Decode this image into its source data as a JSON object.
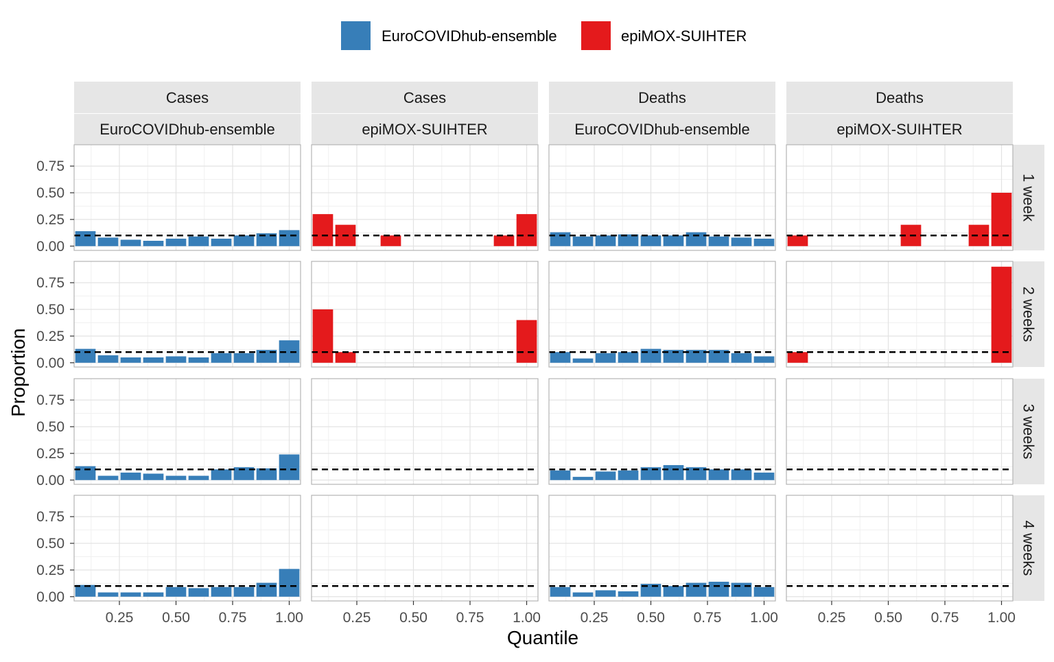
{
  "chart_data": {
    "type": "bar",
    "xlabel": "Quantile",
    "ylabel": "Proportion",
    "xlim": [
      0.05,
      1.05
    ],
    "ylim": [
      -0.04,
      0.95
    ],
    "x_ticks": [
      0.25,
      0.5,
      0.75,
      1.0
    ],
    "x_tick_labels": [
      "0.25",
      "0.50",
      "0.75",
      "1.00"
    ],
    "y_ticks": [
      0,
      0.25,
      0.5,
      0.75
    ],
    "y_tick_labels": [
      "0.00",
      "0.25",
      "0.50",
      "0.75"
    ],
    "reference_line": {
      "y": 0.1,
      "style": "dashed"
    },
    "grid": true,
    "legend_position": "top",
    "legend": [
      {
        "name": "EuroCOVIDhub-ensemble",
        "color": "#377EB8"
      },
      {
        "name": "epiMOX-SUIHTER",
        "color": "#E41A1C"
      }
    ],
    "x": [
      0.1,
      0.2,
      0.3,
      0.4,
      0.5,
      0.6,
      0.7,
      0.8,
      0.9,
      1.0
    ],
    "columns": [
      {
        "target": "Cases",
        "model": "EuroCOVIDhub-ensemble",
        "color": "#377EB8"
      },
      {
        "target": "Cases",
        "model": "epiMOX-SUIHTER",
        "color": "#E41A1C"
      },
      {
        "target": "Deaths",
        "model": "EuroCOVIDhub-ensemble",
        "color": "#377EB8"
      },
      {
        "target": "Deaths",
        "model": "epiMOX-SUIHTER",
        "color": "#E41A1C"
      }
    ],
    "rows": [
      "1 week",
      "2 weeks",
      "3 weeks",
      "4 weeks"
    ],
    "panels": [
      [
        [
          0.14,
          0.08,
          0.06,
          0.05,
          0.07,
          0.09,
          0.07,
          0.1,
          0.12,
          0.15
        ],
        [
          0.3,
          0.2,
          0,
          0.1,
          0,
          0,
          0,
          0,
          0.1,
          0.3
        ],
        [
          0.13,
          0.09,
          0.1,
          0.11,
          0.1,
          0.1,
          0.13,
          0.09,
          0.08,
          0.07
        ],
        [
          0.1,
          0,
          0,
          0,
          0,
          0.2,
          0,
          0,
          0.2,
          0.5
        ]
      ],
      [
        [
          0.13,
          0.07,
          0.05,
          0.05,
          0.06,
          0.05,
          0.09,
          0.09,
          0.12,
          0.21
        ],
        [
          0.5,
          0.1,
          0,
          0,
          0,
          0,
          0,
          0,
          0,
          0.4
        ],
        [
          0.1,
          0.04,
          0.09,
          0.1,
          0.13,
          0.12,
          0.12,
          0.12,
          0.09,
          0.06
        ],
        [
          0.1,
          0,
          0,
          0,
          0,
          0,
          0,
          0,
          0,
          0.9
        ]
      ],
      [
        [
          0.13,
          0.04,
          0.07,
          0.06,
          0.04,
          0.04,
          0.1,
          0.12,
          0.11,
          0.24
        ],
        [
          0,
          0,
          0,
          0,
          0,
          0,
          0,
          0,
          0,
          0
        ],
        [
          0.09,
          0.03,
          0.08,
          0.09,
          0.12,
          0.14,
          0.12,
          0.1,
          0.1,
          0.07
        ],
        [
          0,
          0,
          0,
          0,
          0,
          0,
          0,
          0,
          0,
          0
        ]
      ],
      [
        [
          0.11,
          0.04,
          0.04,
          0.04,
          0.09,
          0.08,
          0.09,
          0.09,
          0.13,
          0.26
        ],
        [
          0,
          0,
          0,
          0,
          0,
          0,
          0,
          0,
          0,
          0
        ],
        [
          0.09,
          0.04,
          0.06,
          0.05,
          0.12,
          0.1,
          0.13,
          0.14,
          0.13,
          0.09
        ],
        [
          0,
          0,
          0,
          0,
          0,
          0,
          0,
          0,
          0,
          0
        ]
      ]
    ]
  }
}
